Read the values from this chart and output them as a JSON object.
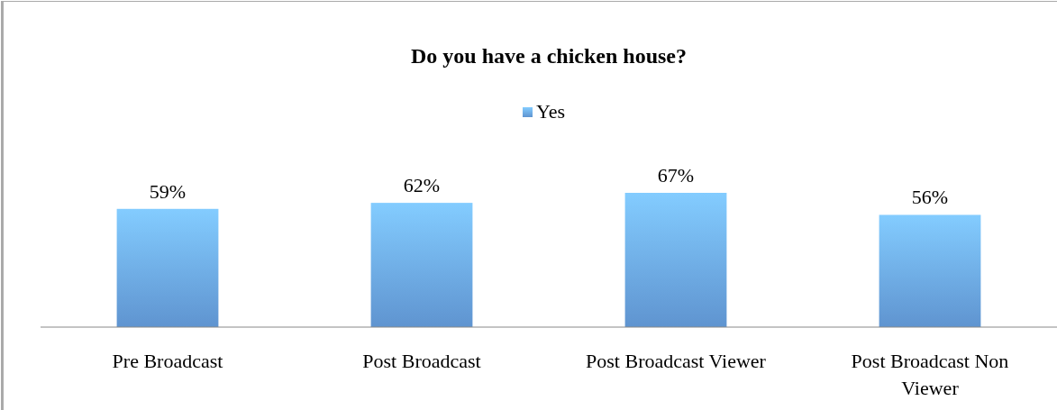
{
  "chart_data": {
    "type": "bar",
    "title": "Do you have a chicken house?",
    "categories": [
      "Pre Broadcast",
      "Post Broadcast",
      "Post Broadcast Viewer",
      "Post Broadcast Non Viewer"
    ],
    "series": [
      {
        "name": "Yes",
        "color": "#6aa5e8",
        "values": [
          59,
          62,
          67,
          56
        ],
        "value_labels": [
          "59%",
          "62%",
          "67%",
          "56%"
        ]
      }
    ],
    "tick_labels": "x",
    "legend": "top"
  }
}
